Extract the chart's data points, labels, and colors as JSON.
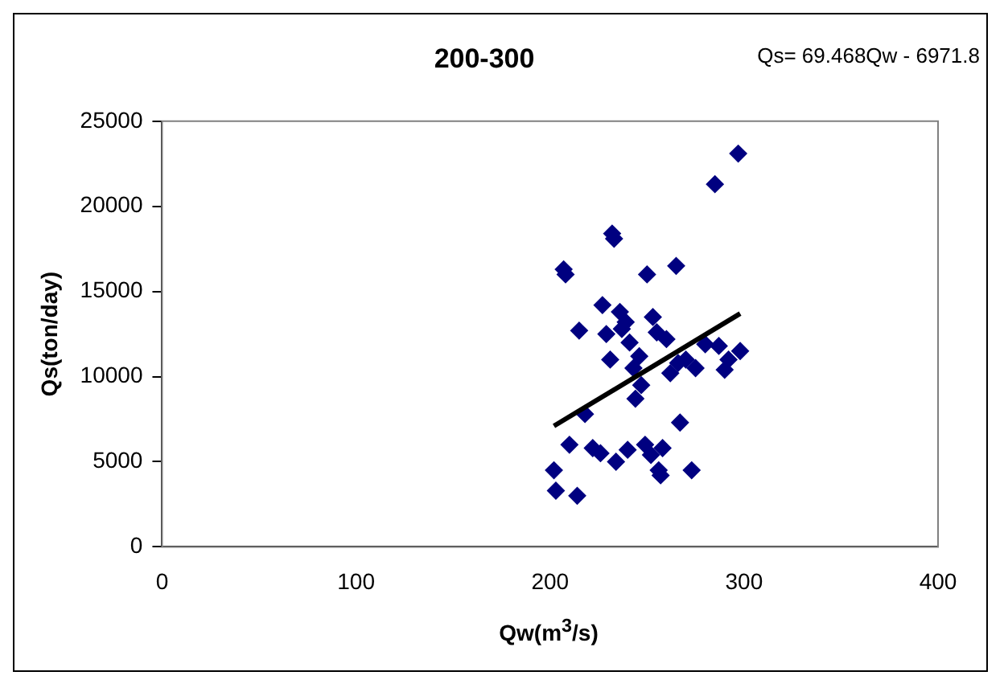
{
  "chart_data": {
    "type": "scatter",
    "title": "200-300",
    "xlabel": "Qw(m$^{3}$/s)",
    "ylabel": "Qs(ton/day)",
    "annotations": [
      "Qs= 69.468Qw - 6971.8"
    ],
    "xlim": [
      0,
      400
    ],
    "xticks": [
      0,
      100,
      200,
      300,
      400
    ],
    "ylim": [
      0,
      25000
    ],
    "yticks": [
      0,
      5000,
      10000,
      15000,
      20000,
      25000
    ],
    "grid": false,
    "legend": false,
    "marker": "diamond",
    "series": [
      {
        "color": "#000080",
        "x": [
          202,
          203,
          207,
          208,
          210,
          214,
          215,
          218,
          222,
          226,
          227,
          229,
          231,
          232,
          233,
          234,
          236,
          237,
          239,
          240,
          241,
          243,
          244,
          246,
          247,
          249,
          250,
          252,
          253,
          255,
          256,
          257,
          258,
          260,
          262,
          265,
          266,
          267,
          270,
          273,
          275,
          280,
          285,
          287,
          290,
          292,
          297,
          298
        ],
        "values": [
          4500,
          3300,
          16300,
          16000,
          6000,
          3000,
          12700,
          7800,
          5800,
          5500,
          14200,
          12500,
          11000,
          18400,
          18100,
          5000,
          13800,
          12800,
          13200,
          5700,
          12000,
          10500,
          8700,
          11200,
          9500,
          6000,
          16000,
          5400,
          13500,
          12600,
          4500,
          4200,
          5800,
          12200,
          10200,
          16500,
          10800,
          7300,
          11000,
          4500,
          10500,
          11900,
          21300,
          11800,
          10400,
          11000,
          23100,
          11500
        ]
      },
      {
        "type": "line",
        "color": "#000000",
        "marker": "none",
        "line_style": "solid",
        "x": [
          202,
          298
        ],
        "values": [
          7100,
          13700
        ]
      }
    ]
  }
}
